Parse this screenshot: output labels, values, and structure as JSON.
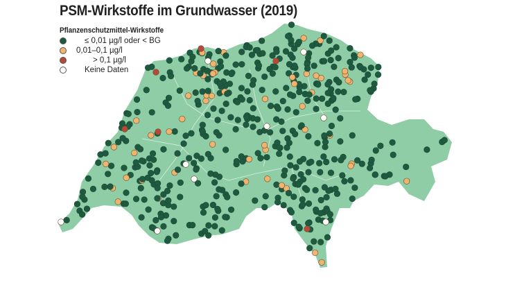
{
  "title": "PSM-Wirkstoffe im Grundwasser (2019)",
  "legend": {
    "title": "Pflanzenschutzmittel-Wirkstoffe",
    "items": [
      {
        "label": "≤ 0,01 µg/l oder < BG",
        "color": "#1f5a40"
      },
      {
        "label": "0,01–0,1 µg/l",
        "color": "#f0b46e"
      },
      {
        "label": "> 0,1 µg/l",
        "color": "#b5493a"
      },
      {
        "label": "Keine Daten",
        "color": "#ffffff"
      }
    ]
  },
  "colors": {
    "land": "#8fcda6",
    "border": "#d8efe0"
  }
}
